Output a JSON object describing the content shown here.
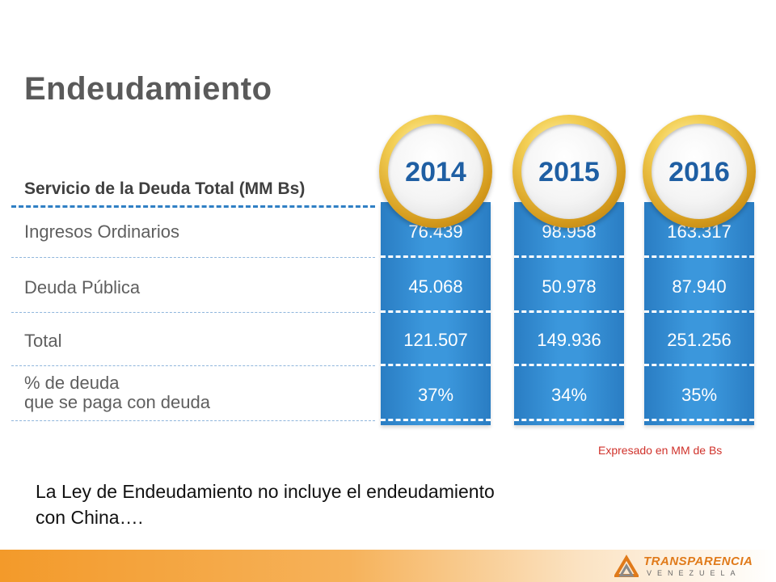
{
  "title": "Endeudamiento",
  "chart_data": {
    "type": "table",
    "title": "Servicio de la Deuda Total (MM Bs)",
    "columns": [
      "2014",
      "2015",
      "2016"
    ],
    "rows": [
      {
        "label": "Ingresos Ordinarios",
        "values": [
          "76.439",
          "98.958",
          "163.317"
        ]
      },
      {
        "label": "Deuda Pública",
        "values": [
          "45.068",
          "50.978",
          "87.940"
        ]
      },
      {
        "label": "Total",
        "values": [
          "121.507",
          "149.936",
          "251.256"
        ]
      },
      {
        "label_lines": [
          "% de deuda",
          "que se paga con deuda"
        ],
        "values": [
          "37%",
          "34%",
          "35%"
        ]
      }
    ],
    "note": "Expresado en MM de Bs",
    "colors": {
      "column": "#3b97dc",
      "medal": "#d49a1c",
      "year": "#1f5fa3",
      "note": "#d0322b"
    }
  },
  "caption": [
    "La Ley de Endeudamiento no incluye el endeudamiento",
    "con China…."
  ],
  "logo": {
    "name": "TRANSPARENCIA",
    "sub": "VENEZUELA"
  }
}
